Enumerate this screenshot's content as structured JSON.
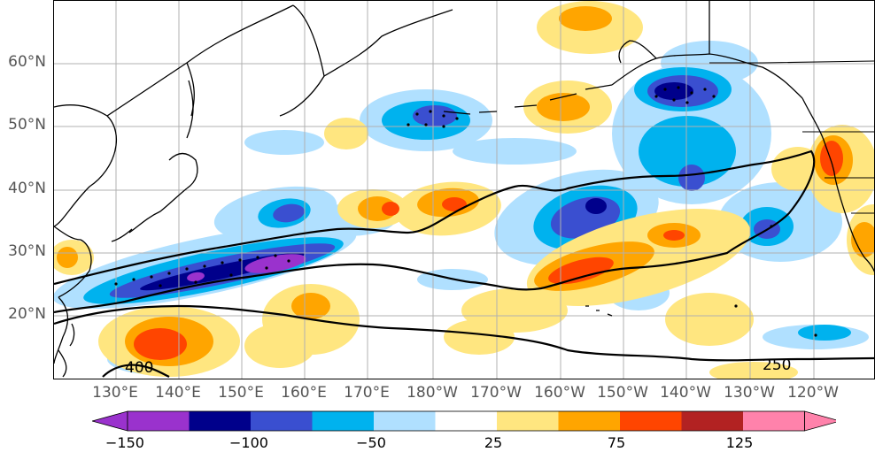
{
  "axes": {
    "lat_labels": [
      "60°N",
      "50°N",
      "40°N",
      "30°N",
      "20°N"
    ],
    "lon_labels": [
      "130°E",
      "140°E",
      "150°E",
      "160°E",
      "170°E",
      "180°W",
      "170°W",
      "160°W",
      "150°W",
      "140°W",
      "130°W",
      "120°W"
    ],
    "gridlines": true
  },
  "contour_labels": {
    "c400": "400",
    "c250": "250"
  },
  "colorbar": {
    "tick_labels": [
      "−150",
      "−100",
      "−50",
      "25",
      "75",
      "125"
    ],
    "colors": [
      "#9a32cd",
      "#00008b",
      "#3a4fd0",
      "#00b2ee",
      "#b0e0ff",
      "#ffffff",
      "#ffe680",
      "#ffa500",
      "#ff4500",
      "#b22222",
      "#ff82ab"
    ],
    "extend": "both"
  },
  "colors": {
    "land_outline": "#000000",
    "grid": "#b0b0b0",
    "label_gray": "#555555"
  }
}
